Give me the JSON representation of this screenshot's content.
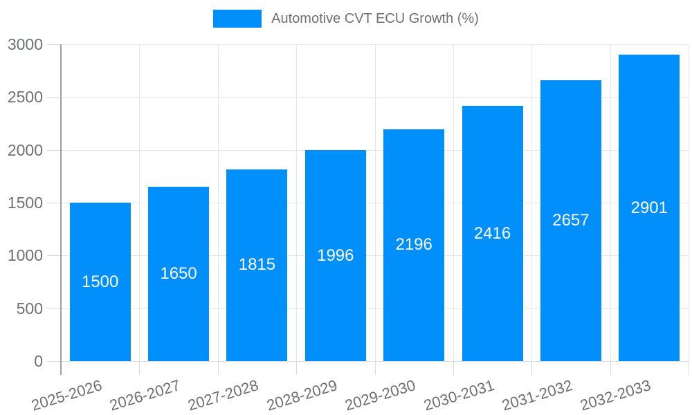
{
  "legend": {
    "label": "Automotive CVT ECU Growth (%)"
  },
  "colors": {
    "bar": "#008FFB",
    "grid": "#e7e7e7",
    "y_axis_line": "#9e9e9e",
    "axis_text": "#6e7073",
    "value_label_text": "#ffffff",
    "background": "#ffffff"
  },
  "chart_data": {
    "type": "bar",
    "title": "Automotive CVT ECU Growth (%)",
    "categories": [
      "2025-2026",
      "2026-2027",
      "2027-2028",
      "2028-2029",
      "2029-2030",
      "2030-2031",
      "2031-2032",
      "2032-2033"
    ],
    "values": [
      1500,
      1650,
      1815,
      1996,
      2196,
      2416,
      2657,
      2901
    ],
    "series_name": "Automotive CVT ECU Growth (%)",
    "xlabel": "",
    "ylabel": "",
    "ylim": [
      0,
      3000
    ],
    "yticks": [
      0,
      500,
      1000,
      1500,
      2000,
      2500,
      3000
    ],
    "grid": true,
    "legend_position": "top-center",
    "data_labels": "inside-center-white",
    "x_label_rotation_deg": -17
  }
}
